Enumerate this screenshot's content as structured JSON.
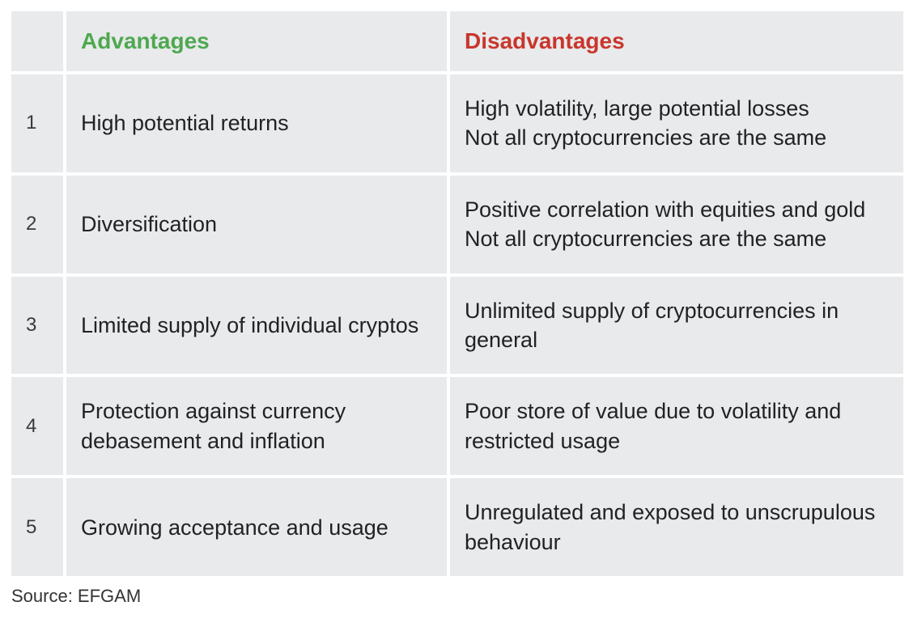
{
  "table": {
    "headers": {
      "advantages": "Advantages",
      "disadvantages": "Disadvantages"
    },
    "colors": {
      "advantages_header": "#4fa84f",
      "disadvantages_header": "#c9362c",
      "cell_bg": "#e8eaec",
      "text": "#262626",
      "gap": "#ffffff"
    },
    "col_widths": {
      "num": 64,
      "advantages": 470,
      "disadvantages": 560
    },
    "rows": [
      {
        "num": "1",
        "advantage": "High potential returns",
        "disadvantage": "High volatility, large potential losses\nNot all cryptocurrencies are the same"
      },
      {
        "num": "2",
        "advantage": "Diversification",
        "disadvantage": "Positive correlation with equities and gold\nNot all cryptocurrencies are the same"
      },
      {
        "num": "3",
        "advantage": "Limited supply of individual cryptos",
        "disadvantage": "Unlimited supply of cryptocurrencies in general"
      },
      {
        "num": "4",
        "advantage": "Protection against currency debasement and inflation",
        "disadvantage": "Poor store of value due to volatility and restricted usage"
      },
      {
        "num": "5",
        "advantage": "Growing acceptance and usage",
        "disadvantage": "Unregulated and exposed to unscrupulous behaviour"
      }
    ]
  },
  "source": "Source: EFGAM"
}
